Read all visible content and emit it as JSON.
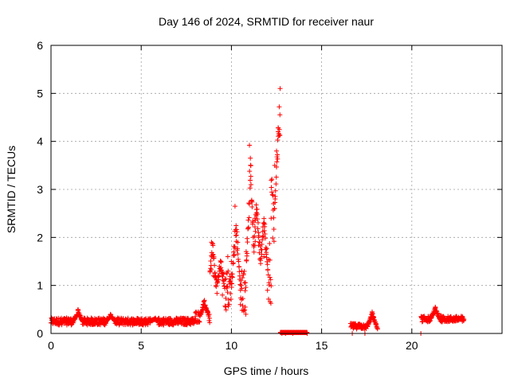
{
  "chart_data": {
    "type": "scatter",
    "title": "Day 146 of 2024, SRMTID for receiver naur",
    "xlabel": "GPS time / hours",
    "ylabel": "SRMTID / TECUs",
    "xlim": [
      0,
      25
    ],
    "ylim": [
      0,
      6
    ],
    "xticks": [
      0,
      5,
      10,
      15,
      20
    ],
    "yticks": [
      0,
      1,
      2,
      3,
      4,
      5,
      6
    ],
    "grid": true,
    "marker": "+",
    "colors": {
      "series": "#ff0000",
      "grid": "#a0a0a0",
      "axes": "#000000"
    },
    "series": [
      {
        "name": "SRMTID",
        "segments": [
          {
            "x_start": 0.0,
            "x_end": 8.0,
            "baseline": 0.25,
            "spread": 0.15,
            "peaks": [
              [
                1.5,
                0.5
              ],
              [
                3.3,
                0.4
              ],
              [
                5.7,
                0.3
              ]
            ]
          },
          {
            "x_start": 8.0,
            "x_end": 8.8,
            "baseline": 0.35,
            "spread": 0.25,
            "peaks": [
              [
                8.5,
                0.7
              ]
            ]
          },
          {
            "x_start": 8.8,
            "x_end": 9.2,
            "baseline": 0.8,
            "spread": 1.0,
            "peaks": [
              [
                8.95,
                2.0
              ]
            ]
          },
          {
            "x_start": 9.2,
            "x_end": 10.8,
            "baseline": 0.9,
            "spread": 0.9,
            "peaks": [
              [
                10.25,
                2.65
              ],
              [
                9.4,
                1.6
              ]
            ]
          },
          {
            "x_start": 10.8,
            "x_end": 12.2,
            "baseline": 1.2,
            "spread": 1.4,
            "peaks": [
              [
                11.05,
                3.92
              ],
              [
                11.4,
                2.95
              ],
              [
                11.8,
                2.6
              ]
            ]
          },
          {
            "x_start": 12.2,
            "x_end": 12.7,
            "baseline": 2.5,
            "spread": 1.5,
            "peaks": [
              [
                12.65,
                5.1
              ],
              [
                12.7,
                4.72
              ],
              [
                12.62,
                4.28
              ]
            ]
          },
          {
            "x_start": 12.7,
            "x_end": 14.2,
            "baseline": 0.0,
            "spread": 0.01,
            "peaks": []
          },
          {
            "x_start": 16.6,
            "x_end": 18.1,
            "baseline": 0.15,
            "spread": 0.12,
            "peaks": [
              [
                17.8,
                0.45
              ]
            ]
          },
          {
            "x_start": 20.5,
            "x_end": 22.9,
            "baseline": 0.3,
            "spread": 0.12,
            "peaks": [
              [
                21.3,
                0.55
              ]
            ]
          }
        ],
        "points": [
          [
            0.0,
            0.22
          ],
          [
            0.3,
            0.28
          ],
          [
            0.6,
            0.18
          ],
          [
            1.0,
            0.3
          ],
          [
            1.5,
            0.5
          ],
          [
            2.0,
            0.25
          ],
          [
            2.5,
            0.3
          ],
          [
            3.0,
            0.22
          ],
          [
            3.3,
            0.4
          ],
          [
            3.8,
            0.2
          ],
          [
            4.5,
            0.25
          ],
          [
            5.0,
            0.2
          ],
          [
            5.5,
            0.22
          ],
          [
            6.0,
            0.18
          ],
          [
            6.5,
            0.2
          ],
          [
            7.0,
            0.25
          ],
          [
            7.5,
            0.28
          ],
          [
            8.0,
            0.35
          ],
          [
            8.4,
            0.5
          ],
          [
            8.9,
            1.9
          ],
          [
            9.0,
            1.2
          ],
          [
            9.5,
            0.8
          ],
          [
            9.8,
            1.6
          ],
          [
            10.0,
            1.5
          ],
          [
            10.2,
            2.65
          ],
          [
            10.5,
            0.6
          ],
          [
            10.8,
            0.4
          ],
          [
            11.0,
            3.92
          ],
          [
            11.05,
            3.65
          ],
          [
            11.3,
            2.4
          ],
          [
            11.5,
            2.0
          ],
          [
            11.8,
            1.6
          ],
          [
            12.0,
            0.9
          ],
          [
            12.2,
            2.4
          ],
          [
            12.4,
            3.5
          ],
          [
            12.5,
            3.8
          ],
          [
            12.6,
            4.28
          ],
          [
            12.65,
            4.72
          ],
          [
            12.7,
            5.1
          ],
          [
            12.8,
            0.0
          ],
          [
            13.0,
            0.0
          ],
          [
            13.4,
            0.0
          ],
          [
            14.2,
            0.0
          ],
          [
            16.7,
            0.0
          ],
          [
            16.9,
            0.15
          ],
          [
            17.2,
            0.12
          ],
          [
            17.4,
            0.0
          ],
          [
            17.6,
            0.2
          ],
          [
            17.8,
            0.45
          ],
          [
            18.0,
            0.2
          ],
          [
            20.5,
            0.0
          ],
          [
            20.6,
            0.25
          ],
          [
            21.0,
            0.35
          ],
          [
            21.3,
            0.55
          ],
          [
            21.6,
            0.38
          ],
          [
            22.0,
            0.3
          ],
          [
            22.4,
            0.28
          ],
          [
            22.8,
            0.25
          ]
        ]
      }
    ]
  }
}
